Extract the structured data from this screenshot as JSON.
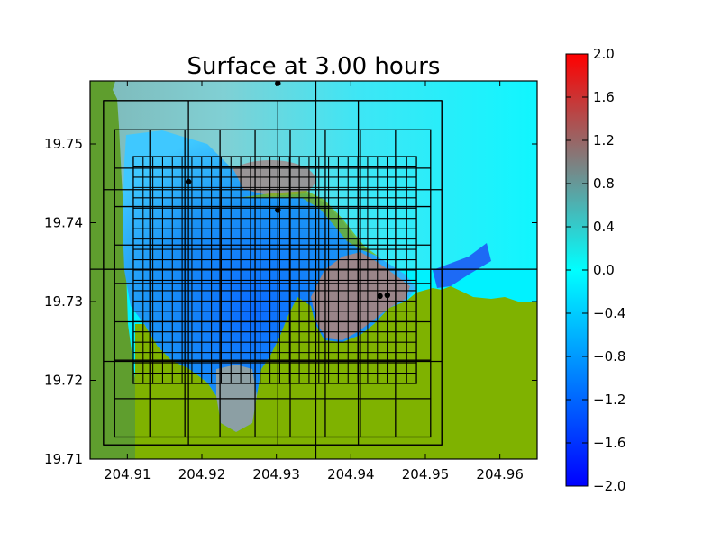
{
  "chart_data": {
    "type": "heatmap",
    "title": "Surface at 3.00 hours",
    "xlabel": "",
    "ylabel": "",
    "xlim": [
      204.905,
      204.965
    ],
    "ylim": [
      19.71,
      19.758
    ],
    "x_ticks": [
      "204.91",
      "204.92",
      "204.93",
      "204.94",
      "204.95",
      "204.96"
    ],
    "x_tick_values": [
      204.91,
      204.92,
      204.93,
      204.94,
      204.95,
      204.96
    ],
    "y_ticks": [
      "19.71",
      "19.72",
      "19.73",
      "19.74",
      "19.75"
    ],
    "y_tick_values": [
      19.71,
      19.72,
      19.73,
      19.74,
      19.75
    ],
    "colorbar": {
      "range": [
        -2.0,
        2.0
      ],
      "ticks": [
        "−2.0",
        "−1.6",
        "−1.2",
        "−0.8",
        "−0.4",
        "0.0",
        "0.4",
        "0.8",
        "1.2",
        "1.6",
        "2.0"
      ],
      "tick_values": [
        -2.0,
        -1.6,
        -1.2,
        -0.8,
        -0.4,
        0.0,
        0.4,
        0.8,
        1.2,
        1.6,
        2.0
      ],
      "colors": {
        "min": "#0000ff",
        "mid_low": "#00ffff",
        "mid_high": "#7f7f7f",
        "max": "#ff0000"
      }
    },
    "land_color": "#7fb200",
    "grid": false,
    "gauges": [
      {
        "x": 204.9302,
        "y": 19.7577
      },
      {
        "x": 204.9182,
        "y": 19.7452
      },
      {
        "x": 204.9302,
        "y": 19.7416
      },
      {
        "x": 204.9439,
        "y": 19.7307
      },
      {
        "x": 204.9449,
        "y": 19.7308
      }
    ],
    "patch_levels": [
      {
        "level": 1,
        "x_lines": [
          204.9353
        ],
        "y_lines": [
          19.7341
        ]
      },
      {
        "level": 2,
        "x_range": [
          204.9068,
          204.9522
        ],
        "y_range": [
          19.7118,
          19.7555
        ],
        "x_lines": [
          204.9068,
          204.9182,
          204.9302,
          204.941,
          204.9522
        ],
        "y_lines": [
          19.7118,
          19.7224,
          19.7341,
          19.7442,
          19.7555
        ]
      },
      {
        "level": 3,
        "x_range": [
          204.9083,
          204.9507
        ],
        "y_range": [
          19.7128,
          19.7518
        ]
      },
      {
        "level": 4,
        "x_range": [
          204.9108,
          204.9488
        ],
        "y_range": [
          19.7196,
          19.7484
        ]
      }
    ]
  }
}
